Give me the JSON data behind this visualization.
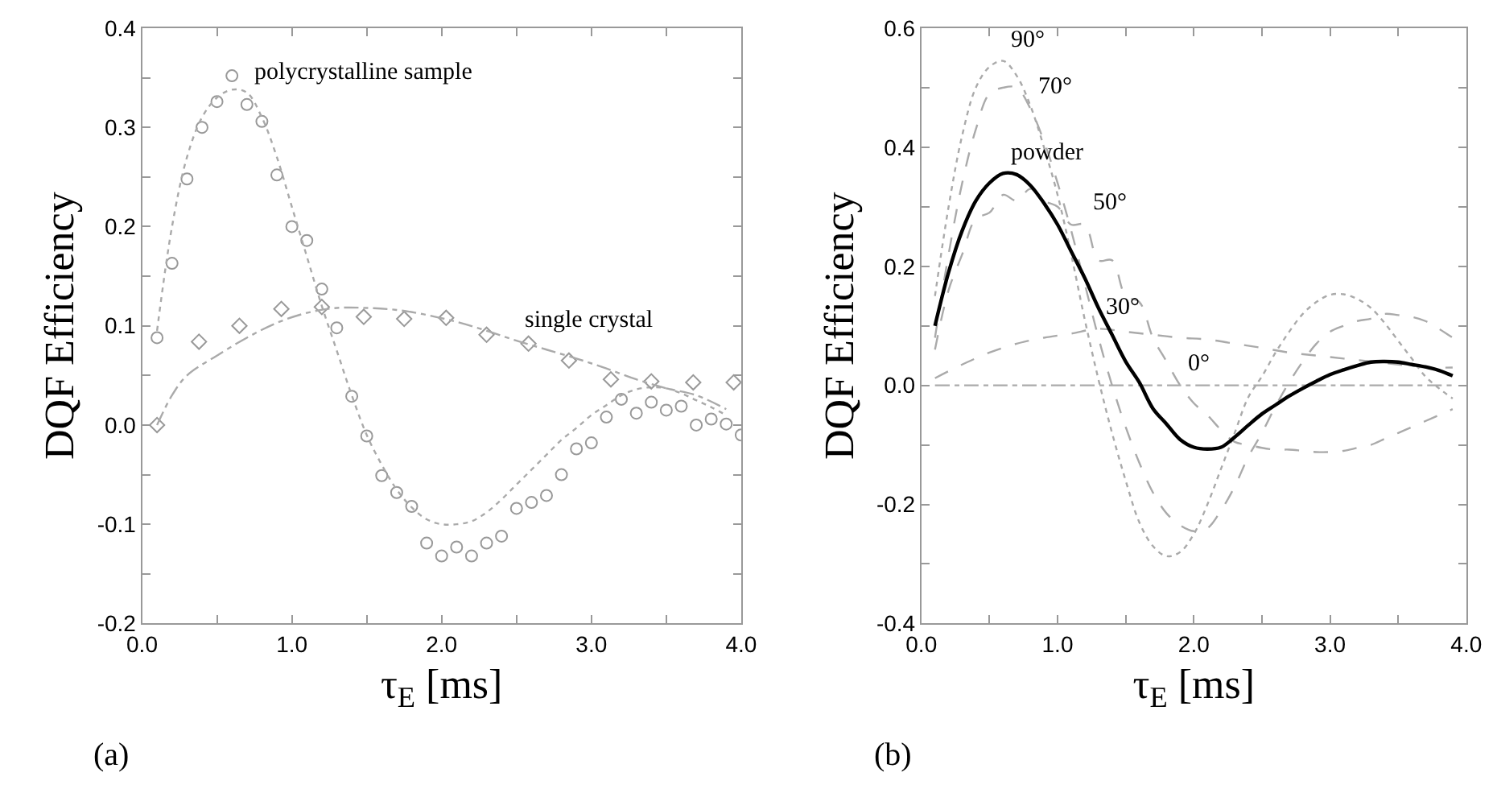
{
  "chart_data": [
    {
      "type": "scatter",
      "xlabel": "τ$_{E}$ [ms]",
      "ylabel": "DQF Efficiency",
      "xlim": [
        0,
        4
      ],
      "ylim": [
        -0.2,
        0.4
      ],
      "xticks": [
        {
          "value": 0,
          "label": "0.0"
        },
        {
          "value": 0.5,
          "label": null
        },
        {
          "value": 1,
          "label": "1.0"
        },
        {
          "value": 1.5,
          "label": null
        },
        {
          "value": 2,
          "label": "2.0"
        },
        {
          "value": 2.5,
          "label": null
        },
        {
          "value": 3,
          "label": "3.0"
        },
        {
          "value": 3.5,
          "label": null
        },
        {
          "value": 4,
          "label": "4.0"
        }
      ],
      "yticks": [
        {
          "value": -0.2,
          "label": "-0.2"
        },
        {
          "value": -0.15,
          "label": null
        },
        {
          "value": -0.1,
          "label": "-0.1"
        },
        {
          "value": -0.05,
          "label": null
        },
        {
          "value": 0,
          "label": "0.0"
        },
        {
          "value": 0.05,
          "label": null
        },
        {
          "value": 0.1,
          "label": "0.1"
        },
        {
          "value": 0.15,
          "label": null
        },
        {
          "value": 0.2,
          "label": "0.2"
        },
        {
          "value": 0.25,
          "label": null
        },
        {
          "value": 0.3,
          "label": "0.3"
        },
        {
          "value": 0.35,
          "label": null
        },
        {
          "value": 0.4,
          "label": "0.4"
        }
      ],
      "series": [
        {
          "marker": "circle",
          "color": "#999999",
          "x": [
            0.1,
            0.2,
            0.3,
            0.4,
            0.5,
            0.6,
            0.7,
            0.8,
            0.9,
            1.0,
            1.1,
            1.2,
            1.3,
            1.4,
            1.5,
            1.6,
            1.7,
            1.8,
            1.9,
            2.0,
            2.1,
            2.2,
            2.3,
            2.4,
            2.5,
            2.6,
            2.7,
            2.8,
            2.9,
            3.0,
            3.1,
            3.2,
            3.3,
            3.4,
            3.5,
            3.6,
            3.7,
            3.8,
            3.9,
            4.0
          ],
          "values": [
            0.088,
            0.163,
            0.248,
            0.3,
            0.326,
            0.352,
            0.323,
            0.306,
            0.252,
            0.2,
            0.186,
            0.137,
            0.098,
            0.029,
            -0.011,
            -0.051,
            -0.068,
            -0.082,
            -0.119,
            -0.132,
            -0.123,
            -0.132,
            -0.119,
            -0.112,
            -0.084,
            -0.078,
            -0.071,
            -0.05,
            -0.024,
            -0.018,
            0.008,
            0.026,
            0.012,
            0.023,
            0.015,
            0.019,
            0.0,
            0.006,
            0.001,
            -0.01
          ]
        },
        {
          "type": "line",
          "line_style": "dotted",
          "marker": "none",
          "color": "#aaaaaa",
          "x": [
            0.1,
            0.2,
            0.3,
            0.4,
            0.5,
            0.6,
            0.7,
            0.8,
            0.9,
            1.0,
            1.1,
            1.2,
            1.3,
            1.4,
            1.5,
            1.6,
            1.7,
            1.8,
            1.9,
            2.0,
            2.1,
            2.2,
            2.3,
            2.4,
            2.5,
            2.6,
            2.7,
            2.8,
            2.9,
            3.0,
            3.1,
            3.2,
            3.3,
            3.4,
            3.5,
            3.6,
            3.7,
            3.8,
            3.9
          ],
          "values": [
            0.095,
            0.2,
            0.27,
            0.31,
            0.33,
            0.338,
            0.335,
            0.31,
            0.27,
            0.22,
            0.17,
            0.12,
            0.075,
            0.03,
            -0.01,
            -0.04,
            -0.065,
            -0.083,
            -0.095,
            -0.1,
            -0.1,
            -0.097,
            -0.088,
            -0.075,
            -0.06,
            -0.045,
            -0.03,
            -0.015,
            -0.003,
            0.01,
            0.02,
            0.03,
            0.036,
            0.038,
            0.037,
            0.032,
            0.025,
            0.018,
            0.01
          ]
        },
        {
          "marker": "diamond",
          "color": "#999999",
          "x": [
            0.1,
            0.38,
            0.65,
            0.93,
            1.2,
            1.48,
            1.75,
            2.03,
            2.3,
            2.58,
            2.85,
            3.13,
            3.4,
            3.68,
            3.95
          ],
          "values": [
            0.0,
            0.084,
            0.1,
            0.117,
            0.119,
            0.109,
            0.107,
            0.108,
            0.091,
            0.082,
            0.065,
            0.046,
            0.044,
            0.043,
            0.043
          ]
        },
        {
          "type": "line",
          "line_style": "dashdot",
          "marker": "none",
          "color": "#aaaaaa",
          "x": [
            0.1,
            0.2,
            0.3,
            0.5,
            0.7,
            0.9,
            1.1,
            1.3,
            1.5,
            1.7,
            1.9,
            2.1,
            2.3,
            2.5,
            2.7,
            2.9,
            3.1,
            3.3,
            3.5,
            3.7,
            3.9
          ],
          "values": [
            0.0,
            0.03,
            0.05,
            0.07,
            0.088,
            0.103,
            0.113,
            0.118,
            0.118,
            0.116,
            0.111,
            0.104,
            0.095,
            0.085,
            0.076,
            0.067,
            0.057,
            0.046,
            0.037,
            0.03,
            0.016
          ]
        }
      ],
      "annotations": [
        {
          "text": "polycrystalline sample",
          "x": 0.7,
          "y": 0.335
        },
        {
          "text": "single crystal",
          "x": 2.5,
          "y": 0.085
        },
        "(a)"
      ]
    },
    {
      "type": "line",
      "xlabel": "τ$_{E}$ [ms]",
      "ylabel": "DQF Efficiency",
      "xlim": [
        0,
        4
      ],
      "ylim": [
        -0.4,
        0.6
      ],
      "xticks": [
        {
          "value": 0,
          "label": "0.0"
        },
        {
          "value": 0.5,
          "label": null
        },
        {
          "value": 1,
          "label": "1.0"
        },
        {
          "value": 1.5,
          "label": null
        },
        {
          "value": 2,
          "label": "2.0"
        },
        {
          "value": 2.5,
          "label": null
        },
        {
          "value": 3,
          "label": "3.0"
        },
        {
          "value": 3.5,
          "label": null
        },
        {
          "value": 4,
          "label": "4.0"
        }
      ],
      "yticks": [
        {
          "value": -0.4,
          "label": "-0.4"
        },
        {
          "value": -0.3,
          "label": null
        },
        {
          "value": -0.2,
          "label": "-0.2"
        },
        {
          "value": -0.1,
          "label": null
        },
        {
          "value": 0,
          "label": "0.0"
        },
        {
          "value": 0.1,
          "label": null
        },
        {
          "value": 0.2,
          "label": "0.2"
        },
        {
          "value": 0.3,
          "label": null
        },
        {
          "value": 0.4,
          "label": "0.4"
        },
        {
          "value": 0.5,
          "label": null
        },
        {
          "value": 0.6,
          "label": "0.6"
        }
      ],
      "series": [
        {
          "line_style": "dotted",
          "color": "#aaaaaa",
          "x": [
            0.1,
            0.2,
            0.3,
            0.4,
            0.5,
            0.6,
            0.7,
            0.8,
            0.9,
            1.0,
            1.1,
            1.2,
            1.3,
            1.4,
            1.5,
            1.6,
            1.7,
            1.8,
            1.9,
            2.0,
            2.1,
            2.2,
            2.3,
            2.4,
            2.5,
            2.6,
            2.7,
            2.8,
            2.9,
            3.0,
            3.1,
            3.2,
            3.3,
            3.4,
            3.5,
            3.6,
            3.7,
            3.8,
            3.9
          ],
          "values": [
            0.15,
            0.3,
            0.42,
            0.5,
            0.535,
            0.545,
            0.52,
            0.47,
            0.4,
            0.32,
            0.22,
            0.11,
            0.01,
            -0.08,
            -0.16,
            -0.23,
            -0.27,
            -0.287,
            -0.28,
            -0.25,
            -0.2,
            -0.14,
            -0.08,
            -0.02,
            0.015,
            0.055,
            0.09,
            0.12,
            0.14,
            0.152,
            0.153,
            0.145,
            0.13,
            0.105,
            0.075,
            0.045,
            0.015,
            -0.005,
            -0.022
          ]
        },
        {
          "line_style": "dashed",
          "color": "#aaaaaa",
          "x": [
            0.1,
            0.2,
            0.3,
            0.4,
            0.5,
            0.6,
            0.7,
            0.8,
            0.9,
            1.0,
            1.1,
            1.2,
            1.3,
            1.4,
            1.5,
            1.6,
            1.7,
            1.8,
            1.9,
            2.0,
            2.1,
            2.2,
            2.3,
            2.4,
            2.5,
            2.6,
            2.7,
            2.8,
            2.9,
            3.0,
            3.1,
            3.2,
            3.3,
            3.4,
            3.5,
            3.6,
            3.7,
            3.8,
            3.9
          ],
          "values": [
            0.08,
            0.22,
            0.34,
            0.43,
            0.49,
            0.5,
            0.5,
            0.465,
            0.41,
            0.34,
            0.26,
            0.17,
            0.08,
            0.0,
            -0.07,
            -0.13,
            -0.18,
            -0.215,
            -0.235,
            -0.245,
            -0.24,
            -0.21,
            -0.17,
            -0.12,
            -0.08,
            -0.035,
            0.005,
            0.04,
            0.07,
            0.09,
            0.1,
            0.108,
            0.112,
            0.12,
            0.118,
            0.115,
            0.108,
            0.095,
            0.08
          ]
        },
        {
          "line_style": "dashed",
          "color": "#aaaaaa",
          "x": [
            0.1,
            0.2,
            0.3,
            0.4,
            0.5,
            0.6,
            0.7,
            0.8,
            0.9,
            1.0,
            1.1,
            1.2,
            1.3,
            1.4,
            1.5,
            1.6,
            1.7,
            1.8,
            1.9,
            2.0,
            2.1,
            2.2,
            2.3,
            2.4,
            2.5,
            2.6,
            2.7,
            2.8,
            2.9,
            3.0,
            3.1,
            3.2,
            3.3,
            3.4,
            3.5,
            3.6,
            3.7,
            3.8,
            3.9
          ],
          "values": [
            0.06,
            0.16,
            0.22,
            0.28,
            0.29,
            0.32,
            0.31,
            0.33,
            0.31,
            0.3,
            0.27,
            0.27,
            0.21,
            0.21,
            0.15,
            0.14,
            0.08,
            0.04,
            0.0,
            -0.03,
            -0.05,
            -0.075,
            -0.095,
            -0.1,
            -0.105,
            -0.108,
            -0.108,
            -0.11,
            -0.112,
            -0.112,
            -0.11,
            -0.105,
            -0.1,
            -0.09,
            -0.08,
            -0.07,
            -0.06,
            -0.05,
            -0.04
          ]
        },
        {
          "line_style": "dashed",
          "color": "#aaaaaa",
          "x": [
            0.1,
            0.3,
            0.5,
            0.7,
            0.9,
            1.1,
            1.3,
            1.5,
            1.7,
            1.9,
            2.1,
            2.3,
            2.5,
            2.7,
            2.9,
            3.1,
            3.3,
            3.5,
            3.7,
            3.9
          ],
          "values": [
            0.012,
            0.035,
            0.055,
            0.07,
            0.08,
            0.087,
            0.095,
            0.09,
            0.085,
            0.08,
            0.077,
            0.07,
            0.063,
            0.055,
            0.05,
            0.045,
            0.04,
            0.035,
            0.03,
            0.03
          ]
        },
        {
          "line_style": "dashdot",
          "color": "#aaaaaa",
          "x": [
            0.1,
            1.9,
            3.9
          ],
          "values": [
            0.0,
            0.0,
            0.0
          ]
        },
        {
          "line_style": "solid",
          "color": "#000000",
          "x": [
            0.1,
            0.2,
            0.3,
            0.4,
            0.5,
            0.6,
            0.7,
            0.8,
            0.9,
            1.0,
            1.1,
            1.2,
            1.3,
            1.4,
            1.5,
            1.6,
            1.7,
            1.8,
            1.9,
            2.0,
            2.1,
            2.2,
            2.3,
            2.4,
            2.5,
            2.6,
            2.7,
            2.8,
            2.9,
            3.0,
            3.1,
            3.2,
            3.3,
            3.4,
            3.5,
            3.6,
            3.7,
            3.8,
            3.9
          ],
          "values": [
            0.1,
            0.19,
            0.26,
            0.31,
            0.34,
            0.356,
            0.354,
            0.336,
            0.306,
            0.27,
            0.225,
            0.18,
            0.13,
            0.085,
            0.04,
            0.005,
            -0.039,
            -0.065,
            -0.091,
            -0.104,
            -0.107,
            -0.104,
            -0.087,
            -0.067,
            -0.048,
            -0.033,
            -0.018,
            -0.005,
            0.007,
            0.018,
            0.026,
            0.033,
            0.039,
            0.04,
            0.039,
            0.035,
            0.031,
            0.025,
            0.016
          ]
        }
      ],
      "annotations": [
        {
          "text": "90°",
          "x": 0.6,
          "y": 0.545
        },
        {
          "text": "70°",
          "x": 0.8,
          "y": 0.465
        },
        {
          "text": "powder",
          "x": 0.6,
          "y": 0.356
        },
        {
          "text": "50°",
          "x": 1.2,
          "y": 0.27
        },
        {
          "text": "30°",
          "x": 1.3,
          "y": 0.095
        },
        {
          "text": "0°",
          "x": 1.9,
          "y": 0.0
        },
        "(b)"
      ]
    }
  ]
}
